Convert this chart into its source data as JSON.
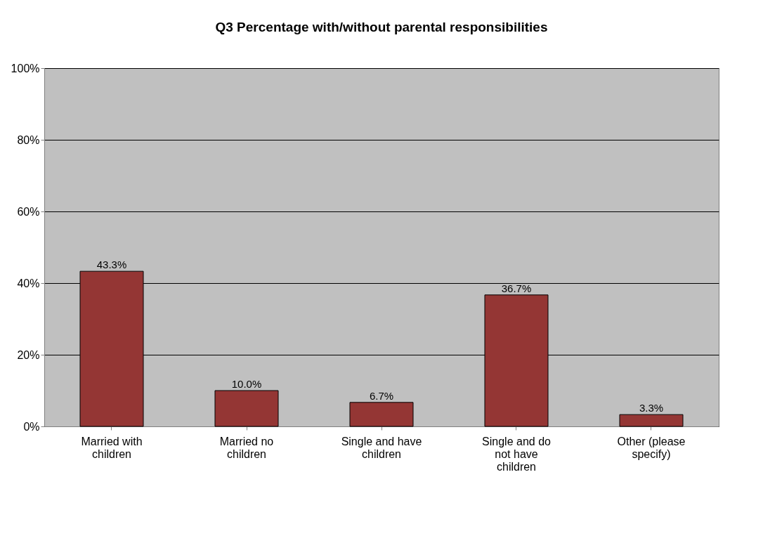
{
  "chart_data": {
    "type": "bar",
    "title": "Q3 Percentage with/without parental responsibilities",
    "categories": [
      "Married with children",
      "Married no children",
      "Single and have children",
      "Single and do not have children",
      "Other (please specify)"
    ],
    "values": [
      43.3,
      10.0,
      6.7,
      36.7,
      3.3
    ],
    "value_labels": [
      "43.3%",
      "10.0%",
      "6.7%",
      "36.7%",
      "3.3%"
    ],
    "color": "#943634",
    "ylim": [
      0,
      100
    ],
    "yticks": [
      {
        "value": 0,
        "label": "0%"
      },
      {
        "value": 20,
        "label": "20%"
      },
      {
        "value": 40,
        "label": "40%"
      },
      {
        "value": 60,
        "label": "60%"
      },
      {
        "value": 80,
        "label": "80%"
      },
      {
        "value": 100,
        "label": "100%"
      }
    ],
    "grid": "y"
  }
}
